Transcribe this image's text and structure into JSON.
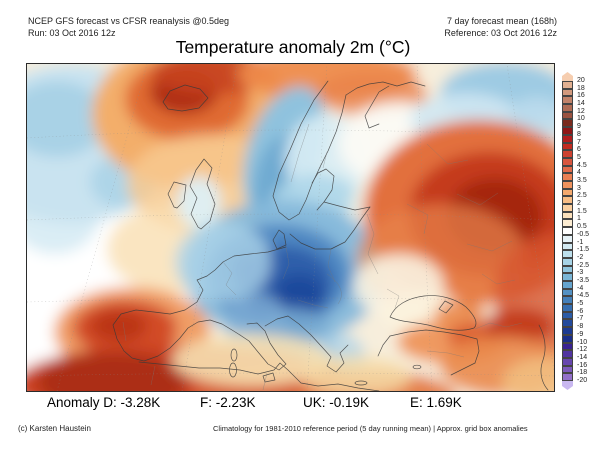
{
  "header": {
    "left_line1": "NCEP GFS forecast vs CFSR reanalysis @0.5deg",
    "left_line2": "Run: 03 Oct 2016 12z",
    "right_line1": "7 day forecast mean (168h)",
    "right_line2": "Reference: 03 Oct 2016 12z"
  },
  "title": "Temperature anomaly 2m (°C)",
  "anomaly_line": {
    "items": [
      "Anomaly D: -3.28K",
      "F: -2.23K",
      "UK: -0.19K",
      "E: 1.69K"
    ]
  },
  "footer": {
    "credit": "(c) Karsten Haustein",
    "note": "Climatology for 1981-2010 reference period (5 day running mean) | Approx. grid box anomalies"
  },
  "colorbar": {
    "labels": [
      "20",
      "18",
      "16",
      "14",
      "12",
      "10",
      "9",
      "8",
      "7",
      "6",
      "5",
      "4.5",
      "4",
      "3.5",
      "3",
      "2.5",
      "2",
      "1.5",
      "1",
      "0.5",
      "-0.5",
      "-1",
      "-1.5",
      "-2",
      "-2.5",
      "-3",
      "-3.5",
      "-4",
      "-4.5",
      "-5",
      "-6",
      "-7",
      "-8",
      "-9",
      "-10",
      "-12",
      "-14",
      "-16",
      "-18",
      "-20"
    ],
    "colors": [
      "#F6CEB0",
      "#E2B091",
      "#D29A7E",
      "#C2836A",
      "#B06C55",
      "#9A5240",
      "#7A2B1E",
      "#8F1616",
      "#B11D1D",
      "#C12B20",
      "#CD4130",
      "#D8553E",
      "#E16A4A",
      "#EA7F53",
      "#F0935E",
      "#F4A96E",
      "#F8BD85",
      "#FACFA0",
      "#FCE0BB",
      "#FDEDD3",
      "#FFFFFF",
      "#E6F2F7",
      "#D2E9F2",
      "#BDDFEC",
      "#A7D3E6",
      "#90C5DE",
      "#7AB5D6",
      "#66A5CE",
      "#5492C4",
      "#4480BA",
      "#366EB0",
      "#2C5CA6",
      "#234A9C",
      "#1C3A92",
      "#1A2E8A",
      "#3A2292",
      "#5134A0",
      "#6746AE",
      "#7D5ABC",
      "#9370CA",
      "#C9B8F0"
    ]
  },
  "chart_data": {
    "type": "filled-contour-map",
    "title": "Temperature anomaly 2m (°C)",
    "units": "K",
    "scale_boundaries": [
      20,
      18,
      16,
      14,
      12,
      10,
      9,
      8,
      7,
      6,
      5,
      4.5,
      4,
      3.5,
      3,
      2.5,
      2,
      1.5,
      1,
      0.5,
      -0.5,
      -1,
      -1.5,
      -2,
      -2.5,
      -3,
      -3.5,
      -4,
      -4.5,
      -5,
      -6,
      -7,
      -8,
      -9,
      -10,
      -12,
      -14,
      -16,
      -18,
      -20
    ],
    "regional_means": [
      {
        "region": "D",
        "value": "-3.28K"
      },
      {
        "region": "F",
        "value": "-2.23K"
      },
      {
        "region": "UK",
        "value": "-0.19K"
      },
      {
        "region": "E",
        "value": "1.69K"
      }
    ]
  }
}
